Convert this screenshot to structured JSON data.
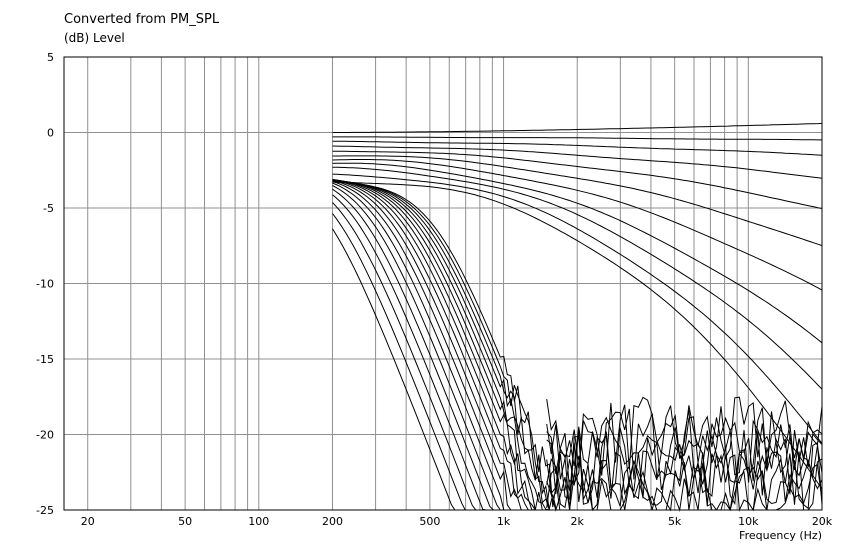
{
  "chart_data": {
    "type": "line",
    "title": "Converted from PM_SPL",
    "ylabel": "(dB)  Level",
    "xlabel": "Frequency  (Hz)",
    "x_scale": "log",
    "xlim": [
      16,
      20000
    ],
    "ylim": [
      -25,
      5
    ],
    "grid": true,
    "xtick_labels": [
      {
        "value": 20,
        "label": "20"
      },
      {
        "value": 50,
        "label": "50"
      },
      {
        "value": 100,
        "label": "100"
      },
      {
        "value": 200,
        "label": "200"
      },
      {
        "value": 500,
        "label": "500"
      },
      {
        "value": 1000,
        "label": "1k"
      },
      {
        "value": 2000,
        "label": "2k"
      },
      {
        "value": 5000,
        "label": "5k"
      },
      {
        "value": 10000,
        "label": "10k"
      },
      {
        "value": 20000,
        "label": "20k"
      }
    ],
    "ytick_labels": [
      5,
      0,
      -5,
      -10,
      -15,
      -20,
      -25
    ],
    "upper_family": {
      "x_start": 200,
      "x_end": 20000,
      "description_values": "curves begin at 200 Hz, offsets in dB at 200 Hz and slope toward 20 kHz",
      "start_levels": [
        0,
        -0.3,
        -0.6,
        -0.9,
        -1.2,
        -1.5,
        -1.8,
        -2.1,
        -2.4,
        -2.8,
        -3.2
      ],
      "end_levels": [
        0.6,
        -0.5,
        -1.5,
        -3,
        -5,
        -7.5,
        -10.5,
        -14,
        -17,
        -20.5,
        -23.5
      ]
    },
    "lower_family": {
      "x_start": 200,
      "start_level_range": [
        -2.3,
        -3.2
      ],
      "rolloff_cutoffs_hz": [
        180,
        200,
        220,
        240,
        260,
        280,
        300,
        320,
        340,
        360,
        380,
        400,
        420,
        440,
        460,
        480,
        500,
        520
      ],
      "floor_db": -25
    }
  }
}
